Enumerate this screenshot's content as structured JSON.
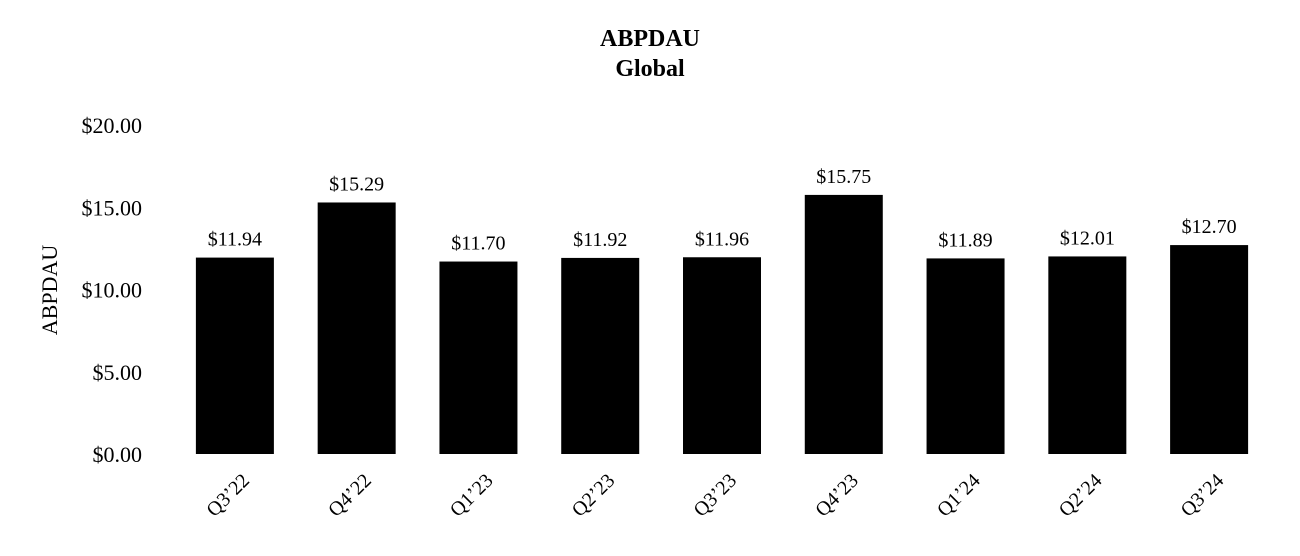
{
  "chart_data": {
    "type": "bar",
    "title": "ABPDAU",
    "subtitle": "Global",
    "ylabel": "ABPDAU",
    "xlabel": "",
    "ylim": [
      0,
      20
    ],
    "yticks": [
      0,
      5,
      10,
      15,
      20
    ],
    "ytick_labels": [
      "$0.00",
      "$5.00",
      "$10.00",
      "$15.00",
      "$20.00"
    ],
    "categories": [
      "Q3’22",
      "Q4’22",
      "Q1’23",
      "Q2’23",
      "Q3’23",
      "Q4’23",
      "Q1’24",
      "Q2’24",
      "Q3’24"
    ],
    "values": [
      11.94,
      15.29,
      11.7,
      11.92,
      11.96,
      15.75,
      11.89,
      12.01,
      12.7
    ],
    "data_labels": [
      "$11.94",
      "$15.29",
      "$11.70",
      "$11.92",
      "$11.96",
      "$15.75",
      "$11.89",
      "$12.01",
      "$12.70"
    ],
    "bar_color": "#000000",
    "grid": false,
    "legend": "none"
  }
}
